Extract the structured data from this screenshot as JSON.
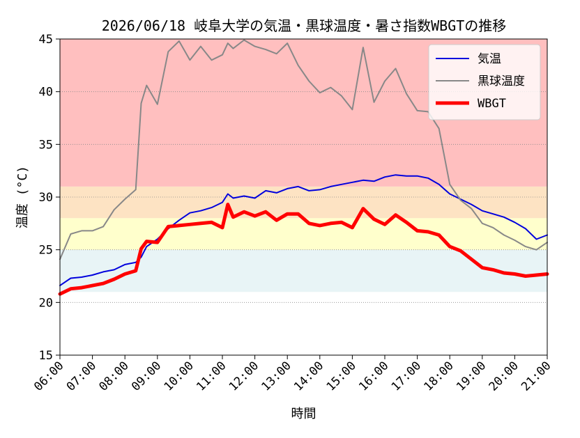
{
  "chart_data": {
    "type": "line",
    "title": "2026/06/18 岐阜大学の気温・黒球温度・暑さ指数WBGTの推移",
    "xlabel": "時間",
    "ylabel": "温度 (°C)",
    "ylim": [
      15,
      45
    ],
    "xlim": [
      "06:00",
      "21:00"
    ],
    "x_ticks": [
      "06:00",
      "07:00",
      "08:00",
      "09:00",
      "10:00",
      "11:00",
      "12:00",
      "13:00",
      "14:00",
      "15:00",
      "16:00",
      "17:00",
      "18:00",
      "19:00",
      "20:00",
      "21:00"
    ],
    "y_ticks": [
      15,
      20,
      25,
      30,
      35,
      40,
      45
    ],
    "grid": "horizontal dotted",
    "legend": {
      "position": "top-right",
      "entries": [
        "気温",
        "黒球温度",
        "WBGT"
      ]
    },
    "bands": [
      {
        "from": 21,
        "to": 25,
        "color": "#e8f4f6"
      },
      {
        "from": 25,
        "to": 28,
        "color": "#ffffcc"
      },
      {
        "from": 28,
        "to": 31,
        "color": "#fde3c3"
      },
      {
        "from": 31,
        "to": 45,
        "color": "#ffbfbf"
      }
    ],
    "series": [
      {
        "name": "気温",
        "color": "#0000dd",
        "width": 2,
        "x": [
          "06:00",
          "06:20",
          "06:40",
          "07:00",
          "07:20",
          "07:40",
          "08:00",
          "08:20",
          "08:30",
          "08:40",
          "09:00",
          "09:20",
          "09:40",
          "10:00",
          "10:20",
          "10:40",
          "11:00",
          "11:10",
          "11:20",
          "11:40",
          "12:00",
          "12:20",
          "12:40",
          "13:00",
          "13:20",
          "13:40",
          "14:00",
          "14:20",
          "14:40",
          "15:00",
          "15:20",
          "15:40",
          "16:00",
          "16:20",
          "16:40",
          "17:00",
          "17:20",
          "17:40",
          "18:00",
          "18:20",
          "18:40",
          "19:00",
          "19:20",
          "19:40",
          "20:00",
          "20:20",
          "20:40",
          "21:00"
        ],
        "values": [
          21.6,
          22.3,
          22.4,
          22.6,
          22.9,
          23.1,
          23.6,
          23.8,
          24.3,
          25.3,
          26.0,
          27.0,
          27.8,
          28.5,
          28.7,
          29.0,
          29.5,
          30.3,
          29.9,
          30.1,
          29.9,
          30.6,
          30.4,
          30.8,
          31.0,
          30.6,
          30.7,
          31.0,
          31.2,
          31.4,
          31.6,
          31.5,
          31.9,
          32.1,
          32.0,
          32.0,
          31.8,
          31.2,
          30.3,
          29.8,
          29.3,
          28.7,
          28.4,
          28.1,
          27.6,
          27.0,
          26.0,
          26.4
        ]
      },
      {
        "name": "黒球温度",
        "color": "#888888",
        "width": 2,
        "x": [
          "06:00",
          "06:20",
          "06:40",
          "07:00",
          "07:20",
          "07:40",
          "08:00",
          "08:20",
          "08:30",
          "08:40",
          "09:00",
          "09:20",
          "09:40",
          "10:00",
          "10:20",
          "10:40",
          "11:00",
          "11:10",
          "11:20",
          "11:40",
          "12:00",
          "12:20",
          "12:40",
          "13:00",
          "13:20",
          "13:40",
          "14:00",
          "14:20",
          "14:40",
          "15:00",
          "15:20",
          "15:40",
          "16:00",
          "16:20",
          "16:40",
          "17:00",
          "17:20",
          "17:40",
          "18:00",
          "18:20",
          "18:40",
          "19:00",
          "19:20",
          "19:40",
          "20:00",
          "20:20",
          "20:40",
          "21:00"
        ],
        "values": [
          24.1,
          26.5,
          26.8,
          26.8,
          27.2,
          28.8,
          29.8,
          30.7,
          38.9,
          40.6,
          38.8,
          43.8,
          44.8,
          43.0,
          44.3,
          43.0,
          43.5,
          44.6,
          44.1,
          44.9,
          44.3,
          44.0,
          43.6,
          44.6,
          42.5,
          41.0,
          39.9,
          40.4,
          39.6,
          38.3,
          44.2,
          39.0,
          41.0,
          42.2,
          39.8,
          38.2,
          38.1,
          36.5,
          31.2,
          29.7,
          28.9,
          27.5,
          27.1,
          26.4,
          25.9,
          25.3,
          25.0,
          25.7
        ]
      },
      {
        "name": "WBGT",
        "color": "#ff0000",
        "width": 5,
        "x": [
          "06:00",
          "06:20",
          "06:40",
          "07:00",
          "07:20",
          "07:40",
          "08:00",
          "08:20",
          "08:30",
          "08:40",
          "09:00",
          "09:20",
          "09:40",
          "10:00",
          "10:20",
          "10:40",
          "11:00",
          "11:10",
          "11:20",
          "11:40",
          "12:00",
          "12:20",
          "12:40",
          "13:00",
          "13:20",
          "13:40",
          "14:00",
          "14:20",
          "14:40",
          "15:00",
          "15:20",
          "15:40",
          "16:00",
          "16:20",
          "16:40",
          "17:00",
          "17:20",
          "17:40",
          "18:00",
          "18:20",
          "18:40",
          "19:00",
          "19:20",
          "19:40",
          "20:00",
          "20:20",
          "20:40",
          "21:00"
        ],
        "values": [
          20.8,
          21.3,
          21.4,
          21.6,
          21.8,
          22.2,
          22.7,
          23.0,
          25.1,
          25.8,
          25.7,
          27.2,
          27.3,
          27.4,
          27.5,
          27.6,
          27.1,
          29.3,
          28.1,
          28.6,
          28.2,
          28.6,
          27.8,
          28.4,
          28.4,
          27.5,
          27.3,
          27.5,
          27.6,
          27.1,
          28.9,
          27.9,
          27.4,
          28.3,
          27.6,
          26.8,
          26.7,
          26.4,
          25.3,
          24.9,
          24.1,
          23.3,
          23.1,
          22.8,
          22.7,
          22.5,
          22.6,
          22.7
        ]
      }
    ]
  }
}
